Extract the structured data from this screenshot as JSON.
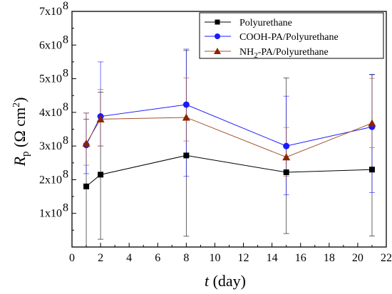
{
  "chart_data": {
    "type": "line",
    "xlabel_italic": "t",
    "xlabel_rest": " (day)",
    "ylabel_italic": "R",
    "ylabel_sub": "p",
    "ylabel_rest": " (Ω cm",
    "ylabel_sup": "2",
    "ylabel_close": ")",
    "xlim": [
      0,
      22
    ],
    "ylim": [
      0,
      700000000
    ],
    "x_ticks": [
      "0",
      "2",
      "4",
      "6",
      "8",
      "10",
      "12",
      "14",
      "16",
      "18",
      "20",
      "22"
    ],
    "y_tick_mantissas": [
      "1x10",
      "2x10",
      "3x10",
      "4x10",
      "5x10",
      "6x10",
      "7x10"
    ],
    "y_tick_exponent": "8",
    "grid": false,
    "legend_position": "top-right",
    "series": [
      {
        "name": "Polyurethane",
        "color": "#000000",
        "marker": "square",
        "x": [
          1,
          2,
          8,
          15,
          21
        ],
        "y": [
          180000000,
          215000000,
          272000000,
          222000000,
          230000000
        ],
        "err_low": [
          180000000,
          192000000,
          240000000,
          182000000,
          197000000
        ],
        "err_high": [
          200000000,
          245000000,
          312000000,
          280000000,
          283000000
        ]
      },
      {
        "name_parts": [
          "COOH-PA/Polyurethane"
        ],
        "color": "#1a1aff",
        "marker": "circle",
        "x": [
          1,
          2,
          8,
          15,
          21
        ],
        "y": [
          303000000,
          388000000,
          423000000,
          300000000,
          357000000
        ],
        "err_low": [
          85000000,
          88000000,
          213000000,
          145000000,
          195000000
        ],
        "err_high": [
          95000000,
          162000000,
          165000000,
          148000000,
          155000000
        ]
      },
      {
        "name_pre": "NH",
        "name_sub": "2",
        "name_post": "-PA/Polyurethane",
        "color": "#a0522d",
        "marker": "triangle",
        "x": [
          1,
          2,
          8,
          15,
          21
        ],
        "y": [
          308000000,
          380000000,
          385000000,
          267000000,
          368000000
        ],
        "err_low": [
          65000000,
          80000000,
          70000000,
          57000000,
          73000000
        ],
        "err_high": [
          90000000,
          88000000,
          117000000,
          88000000,
          133000000
        ]
      }
    ]
  }
}
